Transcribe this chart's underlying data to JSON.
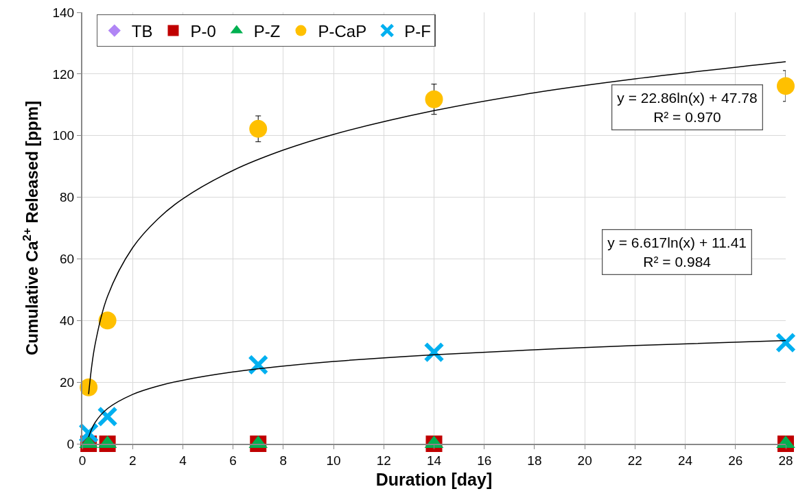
{
  "chart_data": {
    "type": "scatter",
    "xlabel": "Duration [day]",
    "ylabel": "Cumulative Ca$^{2+}$ Released [ppm]",
    "xlim": [
      0,
      28
    ],
    "xticks": [
      0,
      2,
      4,
      6,
      8,
      10,
      12,
      14,
      16,
      18,
      20,
      22,
      24,
      26,
      28
    ],
    "ylim": [
      0,
      140
    ],
    "yticks": [
      0,
      20,
      40,
      60,
      80,
      100,
      120,
      140
    ],
    "grid": true,
    "legend": "top",
    "x": [
      0.25,
      1,
      7,
      14,
      28
    ],
    "series": [
      {
        "name": "TB",
        "color": "#b085f5",
        "marker": "diamond",
        "values": [
          null,
          null,
          null,
          null,
          null
        ]
      },
      {
        "name": "P-0",
        "color": "#c00000",
        "marker": "square",
        "values": [
          0,
          0,
          0,
          0,
          0
        ]
      },
      {
        "name": "P-Z",
        "color": "#00b050",
        "marker": "triangle",
        "values": [
          0,
          0,
          0,
          0,
          0
        ]
      },
      {
        "name": "P-CaP",
        "color": "#ffc000",
        "marker": "circle",
        "values": [
          18.3,
          40,
          102.2,
          111.8,
          116.1
        ],
        "errors": [
          null,
          null,
          4.2,
          4.9,
          5
        ]
      },
      {
        "name": "P-F",
        "color": "#00b0f0",
        "marker": "cross",
        "values": [
          3.5,
          8.8,
          25.6,
          29.7,
          32.8
        ]
      },
      {
        "type": "line",
        "color": "#000000",
        "marker": "none",
        "x": [
          0.25,
          0.5,
          1,
          2,
          3,
          4,
          6,
          8,
          10,
          14,
          18,
          22,
          28
        ],
        "values": [
          16.1,
          31.9,
          47.8,
          63.6,
          72.9,
          79.5,
          88.7,
          95.3,
          100.4,
          108.1,
          113.9,
          118.4,
          124.0
        ]
      },
      {
        "type": "line",
        "color": "#000000",
        "marker": "none",
        "x": [
          0.25,
          0.5,
          1,
          2,
          3,
          4,
          6,
          8,
          10,
          14,
          18,
          22,
          28
        ],
        "values": [
          2.2,
          6.8,
          11.4,
          16.0,
          18.7,
          20.6,
          23.3,
          25.2,
          26.7,
          28.9,
          30.5,
          31.9,
          33.5
        ]
      }
    ],
    "annotations": [
      "y = 22.86ln(x) + 47.78\nR² = 0.970",
      "y = 6.617ln(x) + 11.41\nR² = 0.984"
    ]
  }
}
